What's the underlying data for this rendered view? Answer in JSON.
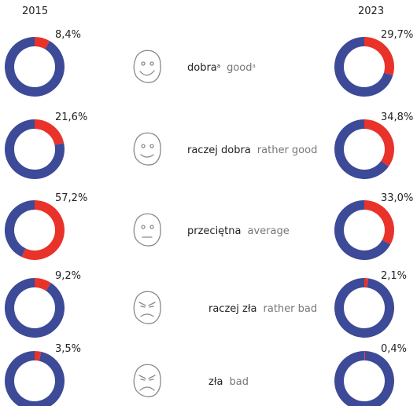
{
  "chart_data": {
    "type": "donut",
    "categories": [
      "dobra",
      "raczej dobra",
      "przeciętna",
      "raczej zła",
      "zła"
    ],
    "categories_en": [
      "good",
      "rather good",
      "average",
      "rather bad",
      "bad"
    ],
    "category_notes": [
      "a",
      null,
      null,
      null,
      null
    ],
    "rest_color": "#3d4a98",
    "series": [
      {
        "name": "2015",
        "color": "#e9322a",
        "values": [
          8.4,
          21.6,
          57.2,
          9.2,
          3.5
        ],
        "value_labels": [
          "8,4%",
          "21,6%",
          "57,2%",
          "9,2%",
          "3,5%"
        ]
      },
      {
        "name": "2023",
        "color": "#e9322a",
        "values": [
          29.7,
          34.8,
          33.0,
          2.1,
          0.4
        ],
        "value_labels": [
          "29,7%",
          "34,8%",
          "33,0%",
          "2,1%",
          "0,4%"
        ]
      }
    ]
  }
}
